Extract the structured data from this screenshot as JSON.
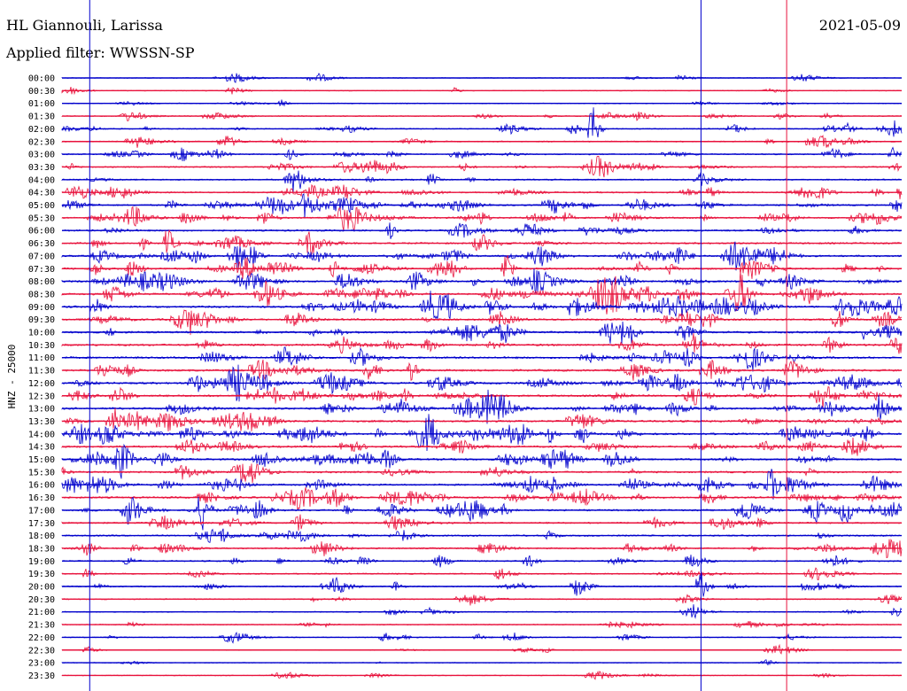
{
  "header": {
    "station": "HL Giannouli, Larissa",
    "filter": "Applied filter: WWSSN-SP",
    "date": "2021-05-09"
  },
  "chart_data": {
    "type": "line",
    "title": "HL Giannouli, Larissa",
    "subtitle": "Applied filter: WWSSN-SP",
    "date": "2021-05-09",
    "ylabel": "HNZ - 25000",
    "xlabel": "",
    "row_labels": [
      "00:00",
      "00:30",
      "01:00",
      "01:30",
      "02:00",
      "02:30",
      "03:00",
      "03:30",
      "04:00",
      "04:30",
      "05:00",
      "05:30",
      "06:00",
      "06:30",
      "07:00",
      "07:30",
      "08:00",
      "08:30",
      "09:00",
      "09:30",
      "10:00",
      "10:30",
      "11:00",
      "11:30",
      "12:00",
      "12:30",
      "13:00",
      "13:30",
      "14:00",
      "14:30",
      "15:00",
      "15:30",
      "16:00",
      "16:30",
      "17:00",
      "17:30",
      "18:00",
      "18:30",
      "19:00",
      "19:30",
      "20:00",
      "20:30",
      "21:00",
      "21:30",
      "22:00",
      "22:30",
      "23:00",
      "23:30"
    ],
    "row_colors": [
      "#0000cc",
      "#e8123c"
    ],
    "marker_lines": [
      {
        "color": "#0000cc",
        "frac": 0.033
      },
      {
        "color": "#0000cc",
        "frac": 0.761
      },
      {
        "color": "#e8123c",
        "frac": 0.863
      }
    ]
  }
}
